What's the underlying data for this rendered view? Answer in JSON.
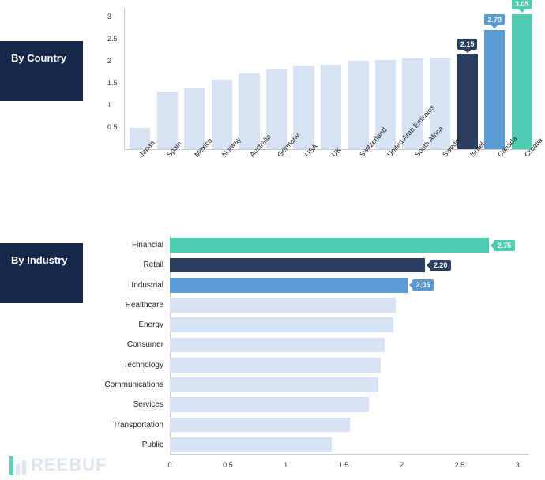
{
  "watermark": {
    "text": "REEBUF"
  },
  "palette": {
    "bar_light": "#d7e3f4",
    "bar_dark": "#2c3e5e",
    "bar_blue": "#5a9bd5",
    "bar_teal": "#4fcdb0",
    "axis": "#cccccc",
    "tick_text": "#333333",
    "label_bg": "#15284b"
  },
  "country_chart": {
    "title": "By Country",
    "type": "bar_vertical",
    "ylim": [
      0,
      3.2
    ],
    "yticks": [
      0.5,
      1,
      1.5,
      2,
      2.5,
      3
    ],
    "bars": [
      {
        "label": "Japan",
        "value": 0.48,
        "color": "#d7e3f4"
      },
      {
        "label": "Spain",
        "value": 1.3,
        "color": "#d7e3f4"
      },
      {
        "label": "Mexico",
        "value": 1.38,
        "color": "#d7e3f4"
      },
      {
        "label": "Norway",
        "value": 1.58,
        "color": "#d7e3f4"
      },
      {
        "label": "Australia",
        "value": 1.72,
        "color": "#d7e3f4"
      },
      {
        "label": "Germany",
        "value": 1.8,
        "color": "#d7e3f4"
      },
      {
        "label": "USA",
        "value": 1.9,
        "color": "#d7e3f4"
      },
      {
        "label": "UK",
        "value": 1.92,
        "color": "#d7e3f4"
      },
      {
        "label": "Switzerland",
        "value": 2.0,
        "color": "#d7e3f4"
      },
      {
        "label": "United Arab Emirates",
        "value": 2.02,
        "color": "#d7e3f4"
      },
      {
        "label": "South Africa",
        "value": 2.05,
        "color": "#d7e3f4"
      },
      {
        "label": "Sweden",
        "value": 2.08,
        "color": "#d7e3f4"
      },
      {
        "label": "Israel",
        "value": 2.15,
        "color": "#2c3e5e",
        "badge": "2.15",
        "badge_color": "#2c3e5e"
      },
      {
        "label": "Canada",
        "value": 2.7,
        "color": "#5a9bd5",
        "badge": "2.70",
        "badge_color": "#5a9bd5"
      },
      {
        "label": "Croatia",
        "value": 3.05,
        "color": "#4fcdb0",
        "badge": "3.05",
        "badge_color": "#4fcdb0"
      }
    ]
  },
  "industry_chart": {
    "title": "By Industry",
    "type": "bar_horizontal",
    "xlim": [
      0,
      3.1
    ],
    "xticks": [
      0,
      0.5,
      1,
      1.5,
      2,
      2.5,
      3
    ],
    "bars": [
      {
        "label": "Financial",
        "value": 2.75,
        "color": "#4fcdb0",
        "badge": "2.75",
        "badge_color": "#4fcdb0"
      },
      {
        "label": "Retail",
        "value": 2.2,
        "color": "#2c3e5e",
        "badge": "2.20",
        "badge_color": "#2c3e5e"
      },
      {
        "label": "Industrial",
        "value": 2.05,
        "color": "#5a9bd5",
        "badge": "2.05",
        "badge_color": "#5a9bd5"
      },
      {
        "label": "Healthcare",
        "value": 1.95,
        "color": "#d7e3f4"
      },
      {
        "label": "Energy",
        "value": 1.93,
        "color": "#d7e3f4"
      },
      {
        "label": "Consumer",
        "value": 1.85,
        "color": "#d7e3f4"
      },
      {
        "label": "Technology",
        "value": 1.82,
        "color": "#d7e3f4"
      },
      {
        "label": "Communications",
        "value": 1.8,
        "color": "#d7e3f4"
      },
      {
        "label": "Services",
        "value": 1.72,
        "color": "#d7e3f4"
      },
      {
        "label": "Transportation",
        "value": 1.55,
        "color": "#d7e3f4"
      },
      {
        "label": "Public",
        "value": 1.4,
        "color": "#d7e3f4"
      }
    ]
  }
}
